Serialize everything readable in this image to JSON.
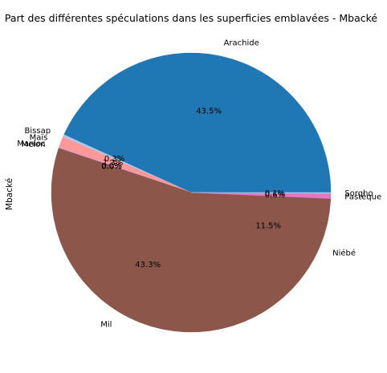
{
  "chart_data": {
    "type": "pie",
    "title": "Part des différentes spéculations dans les superficies emblavées - Mbacké",
    "ylabel": "Mbacké",
    "start_angle_deg": 0,
    "direction": "counterclockwise",
    "slices": [
      {
        "label": "Arachide",
        "value": 43.5,
        "pct_label": "43.5%",
        "color": "#1f77b4"
      },
      {
        "label": "Bissap",
        "value": 0.3,
        "pct_label": "0.3%",
        "color": "#aec7e8"
      },
      {
        "label": "Maïs",
        "value": 1.3,
        "pct_label": "1.3%",
        "color": "#ff9896"
      },
      {
        "label": "Manioc",
        "value": 0.05,
        "pct_label": "0.0%",
        "color": "#c5b0d5"
      },
      {
        "label": "Melon",
        "value": 0.05,
        "pct_label": "0.0%",
        "color": "#9467bd"
      },
      {
        "label": "Mil",
        "value": 43.3,
        "pct_label": "43.3%",
        "color": "#8c564b"
      },
      {
        "label": "Niébé",
        "value": 11.5,
        "pct_label": "11.5%",
        "color": "#8c564b"
      },
      {
        "label": "Pastèque",
        "value": 0.6,
        "pct_label": "0.6%",
        "color": "#e377c2"
      },
      {
        "label": "Sorgho",
        "value": 0.1,
        "pct_label": "0.1%",
        "color": "#aec7e8"
      }
    ]
  }
}
